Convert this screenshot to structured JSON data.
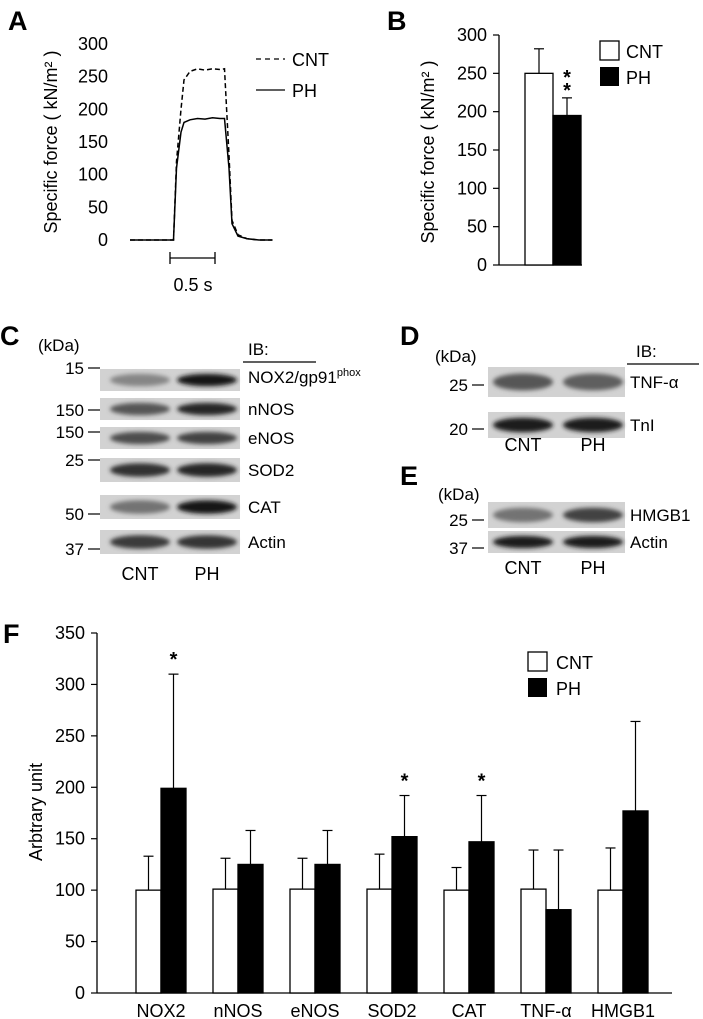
{
  "colors": {
    "cnt_fill": "#ffffff",
    "ph_fill": "#000000",
    "axis": "#000000"
  },
  "chart_data": [
    {
      "panel": "A",
      "type": "line",
      "ylabel": "Specific force ( kN/m² )",
      "ylim": [
        0,
        300
      ],
      "yticks": [
        "0",
        "50",
        "100",
        "150",
        "200",
        "250",
        "300"
      ],
      "scalebar": "0.5 s",
      "legend_position": "top-right",
      "series": [
        {
          "name": "CNT",
          "style": "dashed",
          "x": [
            0.0,
            0.29,
            0.31,
            0.34,
            0.36,
            0.4,
            0.45,
            0.5,
            0.55,
            0.6,
            0.63,
            0.66,
            0.68,
            0.72,
            0.78,
            0.86,
            0.95
          ],
          "y": [
            0,
            0,
            120,
            200,
            245,
            258,
            262,
            260,
            262,
            261,
            262,
            130,
            30,
            8,
            2,
            0,
            0
          ]
        },
        {
          "name": "PH",
          "style": "solid",
          "x": [
            0.0,
            0.29,
            0.31,
            0.34,
            0.36,
            0.4,
            0.45,
            0.5,
            0.55,
            0.6,
            0.63,
            0.66,
            0.68,
            0.72,
            0.78,
            0.86,
            0.95
          ],
          "y": [
            0,
            0,
            110,
            165,
            180,
            184,
            186,
            185,
            187,
            186,
            186,
            110,
            25,
            6,
            2,
            0,
            0
          ]
        }
      ]
    },
    {
      "panel": "B",
      "type": "bar",
      "ylabel": "Specific force ( kN/m² )",
      "ylim": [
        0,
        300
      ],
      "yticks": [
        "0",
        "50",
        "100",
        "150",
        "200",
        "250",
        "300"
      ],
      "legend_position": "top-right",
      "series": [
        {
          "name": "CNT",
          "value": 250,
          "error": 32
        },
        {
          "name": "PH",
          "value": 195,
          "error": 23,
          "annotation": "**"
        }
      ]
    },
    {
      "panel": "F",
      "type": "bar",
      "ylabel": "Arbtrary unit",
      "ylim": [
        0,
        350
      ],
      "yticks": [
        "0",
        "50",
        "100",
        "150",
        "200",
        "250",
        "300",
        "350"
      ],
      "legend_position": "top-right",
      "categories": [
        "NOX2",
        "nNOS",
        "eNOS",
        "SOD2",
        "CAT",
        "TNF-α",
        "HMGB1"
      ],
      "series": [
        {
          "name": "CNT",
          "values": [
            100,
            101,
            101,
            101,
            100,
            101,
            100
          ],
          "errors": [
            33,
            30,
            30,
            34,
            22,
            38,
            41
          ]
        },
        {
          "name": "PH",
          "values": [
            199,
            125,
            125,
            152,
            147,
            81,
            177
          ],
          "errors": [
            111,
            33,
            33,
            40,
            45,
            58,
            87
          ]
        }
      ],
      "annotations": [
        "*",
        "",
        "",
        "*",
        "*",
        "",
        ""
      ]
    }
  ],
  "panel_labels": [
    "A",
    "B",
    "C",
    "D",
    "E",
    "F"
  ],
  "blots": {
    "C": {
      "unit": "(kDa)",
      "ib_header": "IB:",
      "markers": [
        "15",
        "150",
        "150",
        "25",
        "50",
        "37"
      ],
      "bands": [
        "NOX2/gp91",
        "nNOS",
        "eNOS",
        "SOD2",
        "CAT",
        "Actin"
      ],
      "nox2_superscript": "phox",
      "lanes": [
        "CNT",
        "PH"
      ]
    },
    "D": {
      "unit": "(kDa)",
      "ib_header": "IB:",
      "markers": [
        "25",
        "20"
      ],
      "bands": [
        "TNF-α",
        "TnI"
      ],
      "lanes": [
        "CNT",
        "PH"
      ]
    },
    "E": {
      "unit": "(kDa)",
      "markers": [
        "25",
        "37"
      ],
      "bands": [
        "HMGB1",
        "Actin"
      ],
      "lanes": [
        "CNT",
        "PH"
      ]
    }
  }
}
